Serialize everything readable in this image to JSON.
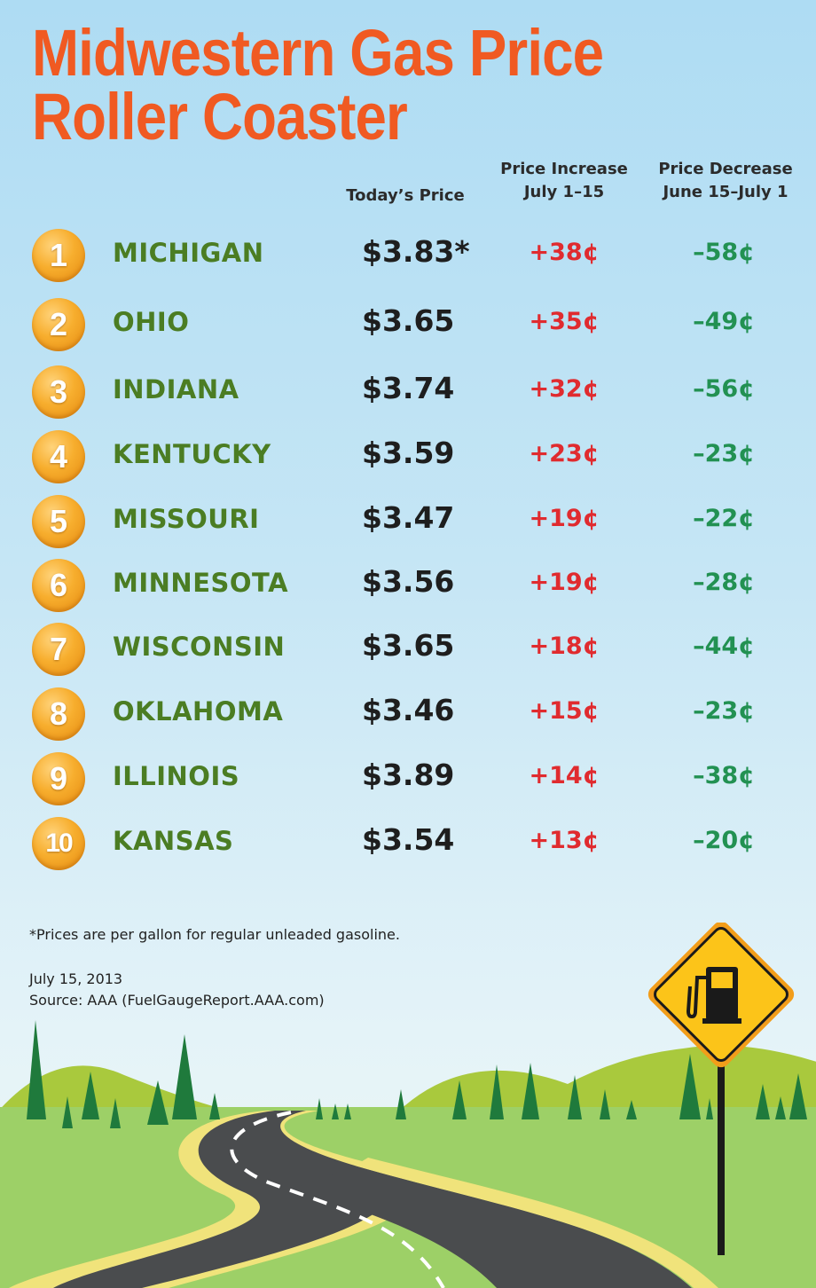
{
  "title": {
    "line1": "Midwestern Gas Price",
    "line2": "Roller Coaster"
  },
  "columns": {
    "price": "Today’s Price",
    "increase_line1": "Price Increase",
    "increase_line2": "July 1–15",
    "decrease_line1": "Price Decrease",
    "decrease_line2": "June 15–July 1"
  },
  "rows": [
    {
      "rank": "1",
      "state": "MICHIGAN",
      "price": "$3.83*",
      "increase": "+38¢",
      "decrease": "–58¢"
    },
    {
      "rank": "2",
      "state": "OHIO",
      "price": "$3.65",
      "increase": "+35¢",
      "decrease": "–49¢"
    },
    {
      "rank": "3",
      "state": "INDIANA",
      "price": "$3.74",
      "increase": "+32¢",
      "decrease": "–56¢"
    },
    {
      "rank": "4",
      "state": "KENTUCKY",
      "price": "$3.59",
      "increase": "+23¢",
      "decrease": "–23¢"
    },
    {
      "rank": "5",
      "state": "MISSOURI",
      "price": "$3.47",
      "increase": "+19¢",
      "decrease": "–22¢"
    },
    {
      "rank": "6",
      "state": "MINNESOTA",
      "price": "$3.56",
      "increase": "+19¢",
      "decrease": "–28¢"
    },
    {
      "rank": "7",
      "state": "WISCONSIN",
      "price": "$3.65",
      "increase": "+18¢",
      "decrease": "–44¢"
    },
    {
      "rank": "8",
      "state": "OKLAHOMA",
      "price": "$3.46",
      "increase": "+15¢",
      "decrease": "–23¢"
    },
    {
      "rank": "9",
      "state": "ILLINOIS",
      "price": "$3.89",
      "increase": "+14¢",
      "decrease": "–38¢"
    },
    {
      "rank": "10",
      "state": "KANSAS",
      "price": "$3.54",
      "increase": "+13¢",
      "decrease": "–20¢"
    }
  ],
  "footnote": "*Prices are per gallon for regular unleaded gasoline.",
  "date": "July 15, 2013",
  "source": "Source: AAA (FuelGaugeReport.AAA.com)",
  "colors": {
    "title": "#f05a22",
    "state": "#4b7d23",
    "increase": "#e02b2f",
    "decrease": "#229152",
    "badge": "#f7ae2e",
    "sign": "#fcc419"
  },
  "illustration": {
    "sign_icon": "gas-pump-icon",
    "scene": "winding-road-with-trees"
  }
}
